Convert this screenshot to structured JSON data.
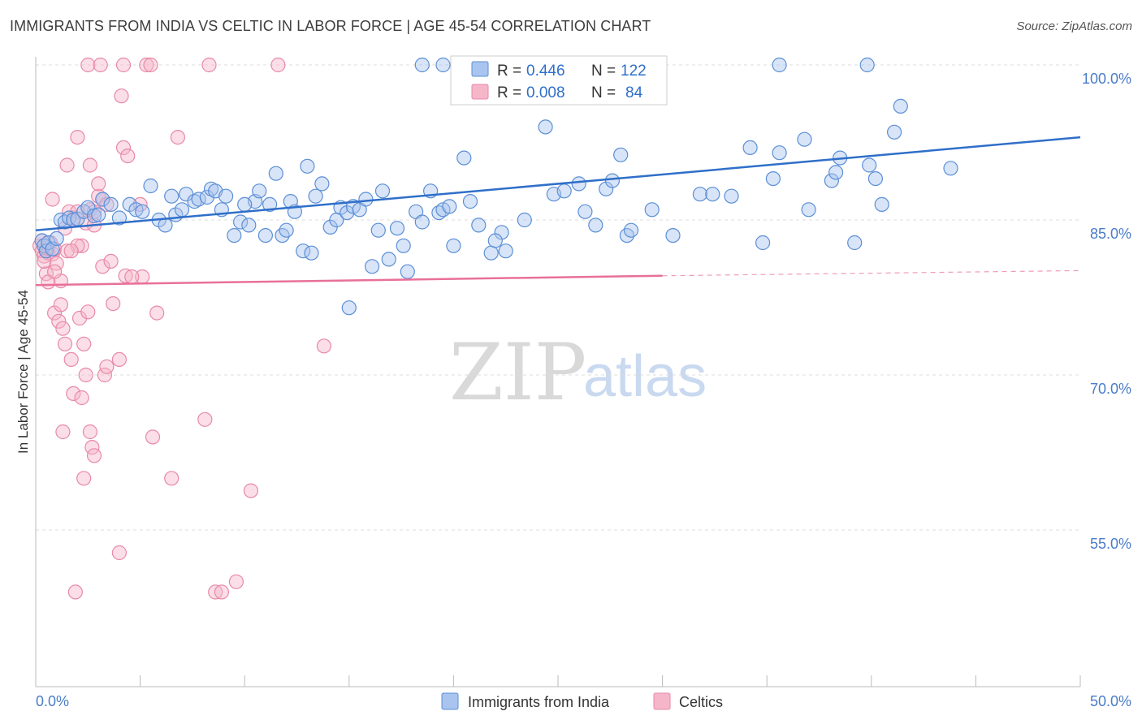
{
  "header": {
    "title": "IMMIGRANTS FROM INDIA VS CELTIC IN LABOR FORCE | AGE 45-54 CORRELATION CHART",
    "source": "Source: ZipAtlas.com"
  },
  "watermark": {
    "zip": "ZIP",
    "atlas": "atlas"
  },
  "colors": {
    "india_fill": "#a9c4ee",
    "india_stroke": "#5b8fd6",
    "india_line": "#2f6fc9",
    "celtic_fill": "#f6b6c9",
    "celtic_stroke": "#e889a8",
    "celtic_line": "#e8709a",
    "grid": "#dcdcdc",
    "tick_text": "#4a7cc9"
  },
  "legend": {
    "rows": [
      {
        "r_label": "R =",
        "r_value": "0.446",
        "n_label": "N =",
        "n_value": "122"
      },
      {
        "r_label": "R =",
        "r_value": "0.008",
        "n_label": "N =",
        "n_value": "84"
      }
    ]
  },
  "chart_data": {
    "type": "scatter",
    "title": "IMMIGRANTS FROM INDIA VS CELTIC IN LABOR FORCE | AGE 45-54 CORRELATION CHART",
    "xlabel": "",
    "ylabel": "In Labor Force | Age 45-54",
    "xlim": [
      0,
      50
    ],
    "ylim": [
      40,
      101
    ],
    "x_tick_labels": [
      "0.0%",
      "50.0%"
    ],
    "y_ticks": [
      100,
      85,
      70,
      55
    ],
    "y_tick_labels": [
      "100.0%",
      "85.0%",
      "70.0%",
      "55.0%"
    ],
    "grid": "horizontal dashed",
    "legend_position": "bottom",
    "series": [
      {
        "name": "Immigrants from India",
        "R": 0.446,
        "N": 122,
        "trend": {
          "x": [
            0,
            50
          ],
          "y": [
            84.0,
            93.0
          ]
        },
        "points": [
          [
            0.3,
            83.0
          ],
          [
            0.4,
            82.5
          ],
          [
            0.5,
            82.0
          ],
          [
            0.6,
            82.8
          ],
          [
            0.8,
            82.2
          ],
          [
            1.0,
            83.2
          ],
          [
            1.2,
            85.0
          ],
          [
            1.4,
            84.8
          ],
          [
            1.6,
            85.2
          ],
          [
            1.8,
            85.0
          ],
          [
            2.0,
            85.1
          ],
          [
            2.3,
            85.8
          ],
          [
            2.5,
            86.2
          ],
          [
            2.8,
            85.4
          ],
          [
            3.2,
            87.0
          ],
          [
            3.6,
            86.5
          ],
          [
            4.0,
            85.2
          ],
          [
            4.5,
            86.5
          ],
          [
            4.8,
            86.0
          ],
          [
            5.1,
            85.8
          ],
          [
            5.5,
            88.3
          ],
          [
            5.9,
            85.0
          ],
          [
            6.2,
            84.5
          ],
          [
            6.5,
            87.3
          ],
          [
            6.7,
            85.5
          ],
          [
            7.0,
            86.0
          ],
          [
            7.2,
            87.5
          ],
          [
            7.6,
            86.8
          ],
          [
            7.8,
            87.0
          ],
          [
            8.2,
            87.2
          ],
          [
            8.4,
            88.0
          ],
          [
            8.6,
            87.8
          ],
          [
            8.9,
            86.0
          ],
          [
            9.1,
            87.3
          ],
          [
            9.5,
            83.5
          ],
          [
            9.8,
            84.8
          ],
          [
            10.2,
            84.5
          ],
          [
            10.5,
            86.8
          ],
          [
            10.7,
            87.8
          ],
          [
            11.0,
            83.5
          ],
          [
            11.2,
            86.5
          ],
          [
            11.5,
            89.5
          ],
          [
            11.8,
            83.5
          ],
          [
            12.2,
            86.8
          ],
          [
            12.4,
            85.8
          ],
          [
            12.8,
            82.0
          ],
          [
            13.0,
            90.2
          ],
          [
            13.2,
            81.8
          ],
          [
            13.4,
            87.3
          ],
          [
            13.7,
            88.5
          ],
          [
            14.1,
            84.3
          ],
          [
            14.4,
            85.0
          ],
          [
            14.6,
            86.2
          ],
          [
            14.9,
            85.7
          ],
          [
            15.2,
            86.3
          ],
          [
            15.5,
            86.0
          ],
          [
            15.8,
            87.0
          ],
          [
            16.1,
            80.5
          ],
          [
            16.4,
            84.0
          ],
          [
            16.6,
            87.8
          ],
          [
            16.9,
            81.2
          ],
          [
            17.3,
            84.2
          ],
          [
            17.6,
            82.5
          ],
          [
            17.8,
            80.0
          ],
          [
            18.2,
            85.8
          ],
          [
            18.5,
            84.8
          ],
          [
            18.9,
            87.8
          ],
          [
            19.3,
            85.7
          ],
          [
            19.5,
            86.0
          ],
          [
            19.8,
            86.3
          ],
          [
            20.5,
            91.0
          ],
          [
            20.8,
            86.8
          ],
          [
            21.2,
            84.5
          ],
          [
            21.8,
            81.8
          ],
          [
            22.3,
            83.8
          ],
          [
            22.5,
            82.0
          ],
          [
            23.4,
            85.0
          ],
          [
            24.4,
            94.0
          ],
          [
            24.8,
            87.5
          ],
          [
            25.3,
            87.8
          ],
          [
            26.3,
            85.8
          ],
          [
            26.8,
            84.5
          ],
          [
            27.3,
            88.0
          ],
          [
            27.6,
            88.8
          ],
          [
            28.0,
            91.3
          ],
          [
            28.3,
            83.5
          ],
          [
            28.5,
            84.0
          ],
          [
            27.8,
            100.0
          ],
          [
            24.0,
            100.0
          ],
          [
            21.0,
            100.0
          ],
          [
            18.5,
            100.0
          ],
          [
            19.5,
            100.0
          ],
          [
            31.8,
            87.5
          ],
          [
            32.4,
            87.5
          ],
          [
            33.3,
            87.3
          ],
          [
            34.2,
            92.0
          ],
          [
            34.8,
            82.8
          ],
          [
            35.3,
            89.0
          ],
          [
            35.6,
            91.5
          ],
          [
            35.6,
            100.0
          ],
          [
            36.8,
            92.8
          ],
          [
            38.1,
            88.8
          ],
          [
            38.3,
            89.6
          ],
          [
            38.5,
            91.0
          ],
          [
            39.2,
            82.8
          ],
          [
            39.9,
            90.3
          ],
          [
            40.2,
            89.0
          ],
          [
            41.1,
            93.5
          ],
          [
            41.4,
            96.0
          ],
          [
            39.8,
            100.0
          ],
          [
            43.8,
            90.0
          ],
          [
            40.5,
            86.5
          ],
          [
            37.0,
            86.0
          ],
          [
            30.5,
            83.5
          ],
          [
            29.5,
            86.0
          ],
          [
            26.0,
            88.5
          ],
          [
            22.0,
            83.0
          ],
          [
            20.0,
            82.5
          ],
          [
            15.0,
            76.5
          ],
          [
            12.0,
            84.0
          ],
          [
            10.0,
            86.5
          ],
          [
            3.0,
            85.5
          ]
        ]
      },
      {
        "name": "Celtics",
        "R": 0.008,
        "N": 84,
        "trend": {
          "x": [
            0,
            30
          ],
          "y": [
            78.7,
            79.6
          ]
        },
        "trend_dashed": {
          "x": [
            30,
            50
          ],
          "y": [
            79.6,
            80.1
          ]
        },
        "points": [
          [
            0.2,
            82.5
          ],
          [
            0.3,
            82.0
          ],
          [
            0.4,
            81.5
          ],
          [
            0.5,
            82.3
          ],
          [
            0.6,
            81.8
          ],
          [
            0.7,
            82.8
          ],
          [
            0.8,
            81.7
          ],
          [
            0.9,
            82.2
          ],
          [
            1.0,
            80.8
          ],
          [
            0.5,
            79.8
          ],
          [
            0.6,
            79.0
          ],
          [
            1.2,
            79.1
          ],
          [
            0.8,
            87.0
          ],
          [
            1.4,
            84.2
          ],
          [
            1.6,
            85.8
          ],
          [
            1.8,
            85.2
          ],
          [
            2.0,
            85.8
          ],
          [
            2.2,
            82.5
          ],
          [
            2.4,
            84.7
          ],
          [
            2.6,
            86.0
          ],
          [
            2.8,
            85.8
          ],
          [
            3.0,
            87.3
          ],
          [
            3.2,
            87.0
          ],
          [
            3.4,
            86.5
          ],
          [
            1.5,
            90.3
          ],
          [
            2.0,
            93.0
          ],
          [
            2.6,
            90.3
          ],
          [
            3.0,
            88.5
          ],
          [
            4.1,
            97.0
          ],
          [
            4.2,
            92.0
          ],
          [
            4.4,
            91.2
          ],
          [
            5.0,
            86.5
          ],
          [
            2.5,
            100.0
          ],
          [
            3.1,
            100.0
          ],
          [
            4.2,
            100.0
          ],
          [
            5.3,
            100.0
          ],
          [
            5.5,
            100.0
          ],
          [
            8.3,
            100.0
          ],
          [
            11.6,
            100.0
          ],
          [
            6.8,
            93.0
          ],
          [
            0.9,
            76.0
          ],
          [
            1.1,
            75.2
          ],
          [
            1.3,
            74.5
          ],
          [
            1.2,
            76.8
          ],
          [
            1.4,
            73.0
          ],
          [
            1.7,
            71.5
          ],
          [
            1.8,
            68.2
          ],
          [
            2.1,
            75.5
          ],
          [
            2.3,
            73.0
          ],
          [
            2.4,
            70.0
          ],
          [
            2.6,
            64.5
          ],
          [
            2.7,
            63.0
          ],
          [
            2.8,
            62.2
          ],
          [
            2.2,
            67.8
          ],
          [
            2.3,
            60.0
          ],
          [
            1.3,
            64.5
          ],
          [
            2.5,
            76.1
          ],
          [
            3.3,
            70.0
          ],
          [
            3.4,
            70.8
          ],
          [
            3.7,
            76.9
          ],
          [
            4.0,
            71.5
          ],
          [
            4.3,
            79.6
          ],
          [
            5.1,
            79.5
          ],
          [
            4.6,
            79.5
          ],
          [
            5.6,
            64.0
          ],
          [
            5.8,
            76.0
          ],
          [
            6.5,
            60.0
          ],
          [
            8.1,
            65.7
          ],
          [
            4.0,
            52.8
          ],
          [
            1.9,
            49.0
          ],
          [
            8.6,
            49.0
          ],
          [
            8.9,
            49.0
          ],
          [
            9.6,
            50.0
          ],
          [
            10.3,
            58.8
          ],
          [
            13.8,
            72.8
          ],
          [
            3.2,
            80.5
          ],
          [
            2.0,
            82.5
          ],
          [
            1.5,
            82.0
          ],
          [
            0.4,
            81.0
          ],
          [
            2.8,
            84.5
          ],
          [
            1.7,
            82.0
          ],
          [
            0.9,
            80.0
          ],
          [
            3.6,
            81.0
          ],
          [
            0.3,
            83.0
          ]
        ]
      }
    ]
  },
  "bottom_legend": {
    "items": [
      {
        "label": "Immigrants from India"
      },
      {
        "label": "Celtics"
      }
    ]
  }
}
